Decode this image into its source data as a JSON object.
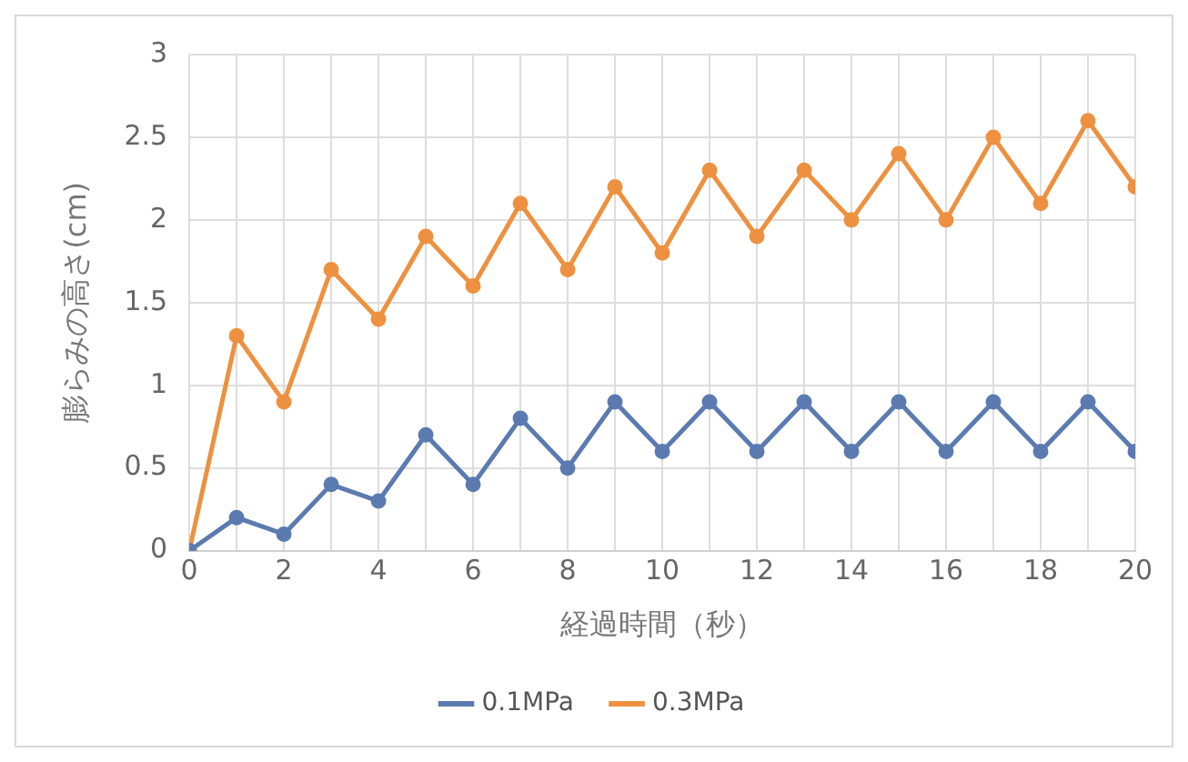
{
  "chart_data": {
    "type": "line",
    "xlabel": "経過時間（秒）",
    "ylabel": "膨らみの高さ(cm)",
    "x": [
      0,
      1,
      2,
      3,
      4,
      5,
      6,
      7,
      8,
      9,
      10,
      11,
      12,
      13,
      14,
      15,
      16,
      17,
      18,
      19,
      20
    ],
    "series": [
      {
        "name": "0.1MPa",
        "color": "#5b7bb0",
        "values": [
          0,
          0.2,
          0.1,
          0.4,
          0.3,
          0.7,
          0.4,
          0.8,
          0.5,
          0.9,
          0.6,
          0.9,
          0.6,
          0.9,
          0.6,
          0.9,
          0.6,
          0.9,
          0.6,
          0.9,
          0.6
        ]
      },
      {
        "name": "0.3MPa",
        "color": "#ed9140",
        "values": [
          0,
          1.3,
          0.9,
          1.7,
          1.4,
          1.9,
          1.6,
          2.1,
          1.7,
          2.2,
          1.8,
          2.3,
          1.9,
          2.3,
          2.0,
          2.4,
          2.0,
          2.5,
          2.1,
          2.6,
          2.2
        ]
      }
    ],
    "xlim": [
      0,
      20
    ],
    "xticks": [
      0,
      {
        "value": 1,
        "label": null
      },
      2,
      {
        "value": 3,
        "label": null
      },
      4,
      {
        "value": 5,
        "label": null
      },
      6,
      {
        "value": 7,
        "label": null
      },
      8,
      {
        "value": 9,
        "label": null
      },
      10,
      {
        "value": 11,
        "label": null
      },
      12,
      {
        "value": 13,
        "label": null
      },
      14,
      {
        "value": 15,
        "label": null
      },
      16,
      {
        "value": 17,
        "label": null
      },
      18,
      {
        "value": 19,
        "label": null
      },
      20
    ],
    "ylim": [
      0,
      3
    ],
    "yticks": [
      0,
      0.5,
      1,
      1.5,
      2,
      2.5,
      3
    ],
    "grid": true,
    "legend": "bottom",
    "marker": "circle",
    "line_style": "solid"
  }
}
